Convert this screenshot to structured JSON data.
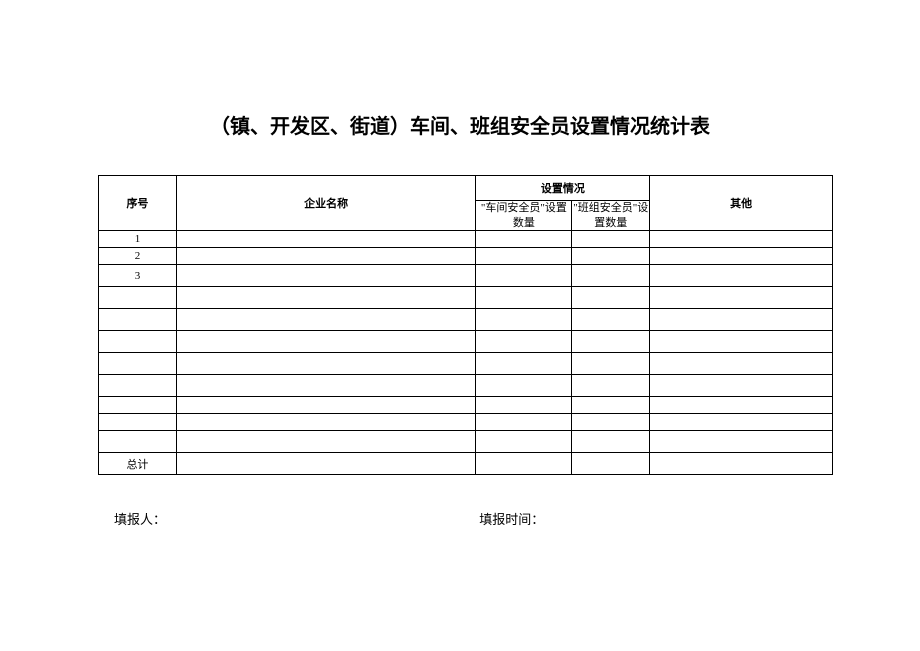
{
  "title": "（镇、开发区、街道）车间、班组安全员设置情况统计表",
  "table": {
    "headers": {
      "seq": "序号",
      "company": "企业名称",
      "setting_group": "设置情况",
      "setting_1": "\"车间安全员\"设置数量",
      "setting_2": "\"班组安全员\"设置数量",
      "other": "其他"
    },
    "rows": [
      {
        "seq": "1",
        "company": "",
        "s1": "",
        "s2": "",
        "other": ""
      },
      {
        "seq": "2",
        "company": "",
        "s1": "",
        "s2": "",
        "other": ""
      },
      {
        "seq": "3",
        "company": "",
        "s1": "",
        "s2": "",
        "other": ""
      },
      {
        "seq": "",
        "company": "",
        "s1": "",
        "s2": "",
        "other": ""
      },
      {
        "seq": "",
        "company": "",
        "s1": "",
        "s2": "",
        "other": ""
      },
      {
        "seq": "",
        "company": "",
        "s1": "",
        "s2": "",
        "other": ""
      },
      {
        "seq": "",
        "company": "",
        "s1": "",
        "s2": "",
        "other": ""
      },
      {
        "seq": "",
        "company": "",
        "s1": "",
        "s2": "",
        "other": ""
      },
      {
        "seq": "",
        "company": "",
        "s1": "",
        "s2": "",
        "other": ""
      },
      {
        "seq": "",
        "company": "",
        "s1": "",
        "s2": "",
        "other": ""
      },
      {
        "seq": "",
        "company": "",
        "s1": "",
        "s2": "",
        "other": ""
      },
      {
        "seq": "总计",
        "company": "",
        "s1": "",
        "s2": "",
        "other": ""
      }
    ]
  },
  "footer": {
    "reporter_label": "填报人：",
    "time_label": "填报时间："
  },
  "colors": {
    "background": "#ffffff",
    "text": "#000000",
    "border": "#000000"
  }
}
